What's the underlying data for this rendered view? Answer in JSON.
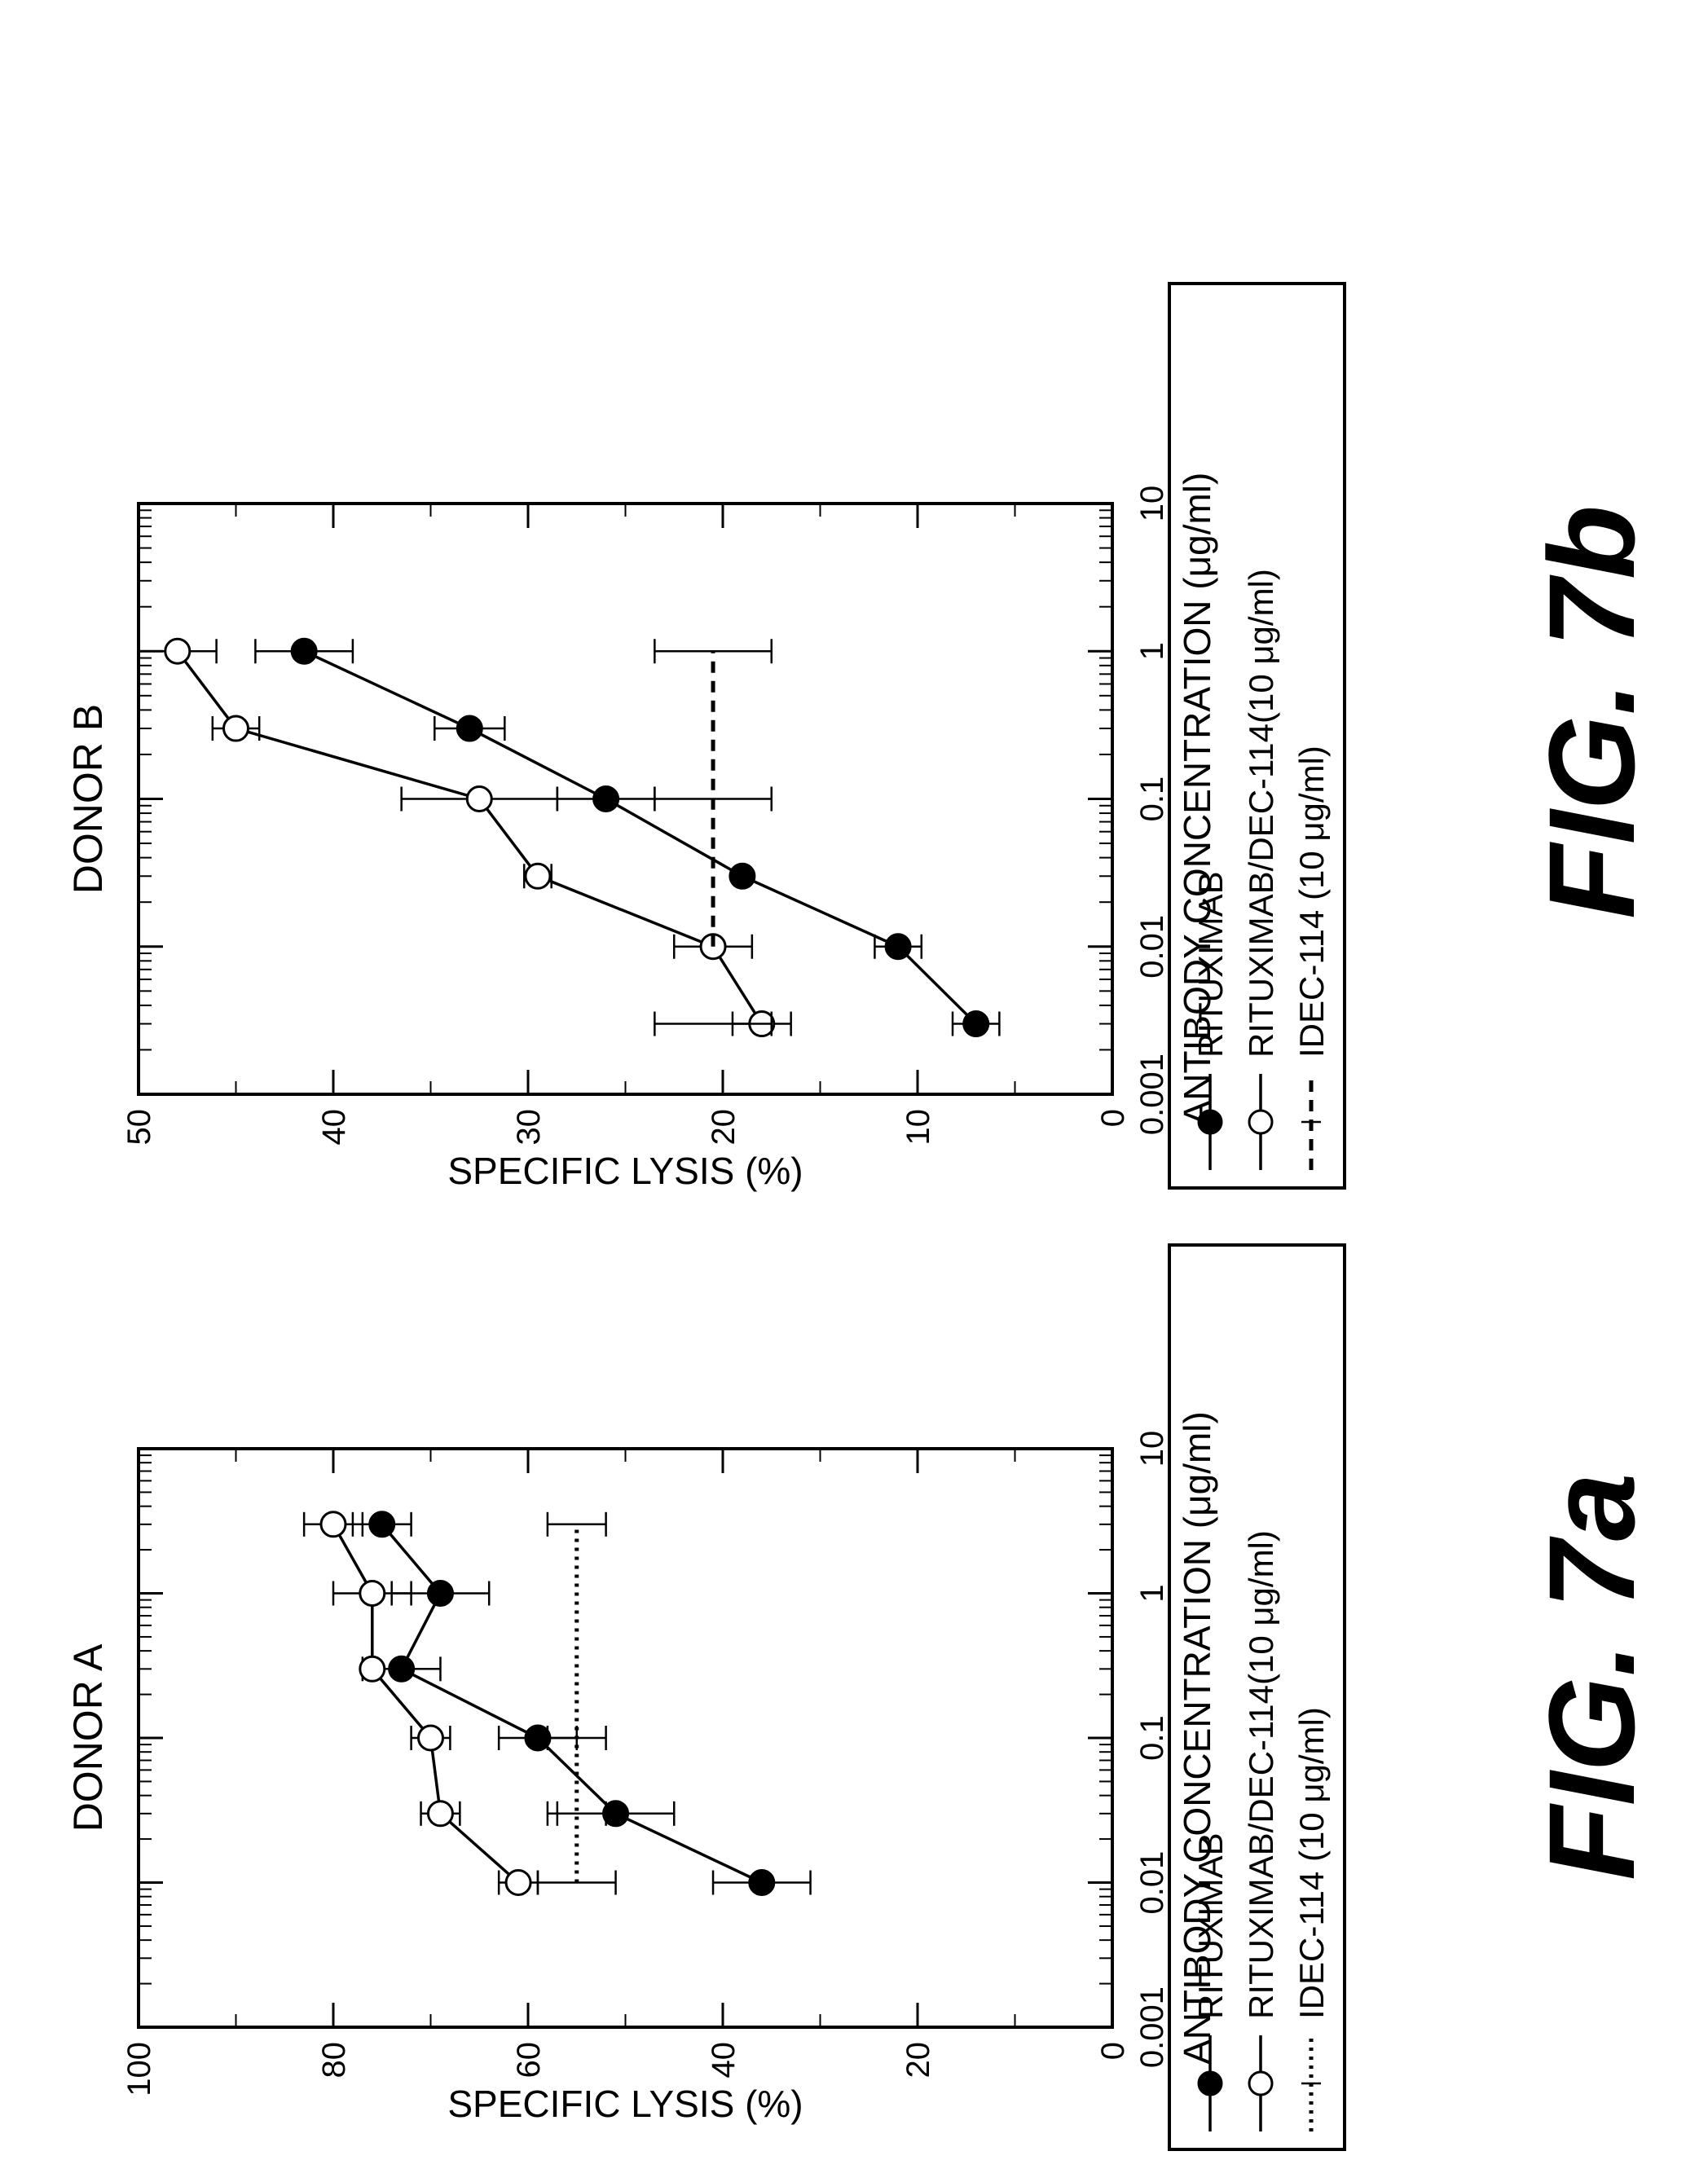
{
  "chart_data": [
    {
      "type": "line",
      "title": "DONOR A",
      "figure_label": "FIG. 7a",
      "xlabel": "ANTIBODY CONCENTRATION (μg/ml)",
      "ylabel": "SPECIFIC LYSIS (%)",
      "xscale": "log",
      "xlim": [
        0.001,
        10
      ],
      "ylim": [
        0,
        100
      ],
      "xticks": [
        "0.001",
        "0.01",
        "0.1",
        "1",
        "10"
      ],
      "yticks": [
        "0",
        "20",
        "40",
        "60",
        "80",
        "100"
      ],
      "legend_position": "below",
      "series": [
        {
          "name": "RITUXIMAB",
          "marker": "filled-circle",
          "style": "solid",
          "x": [
            0.01,
            0.03,
            0.1,
            0.3,
            1,
            3
          ],
          "y": [
            36,
            51,
            59,
            73,
            69,
            75
          ],
          "err": [
            5,
            6,
            4,
            4,
            5,
            3
          ]
        },
        {
          "name": "RITUXIMAB/DEC-114(10 μg/ml)",
          "marker": "open-circle",
          "style": "solid",
          "x": [
            0.01,
            0.03,
            0.1,
            0.3,
            1,
            3
          ],
          "y": [
            61,
            69,
            70,
            76,
            76,
            80
          ],
          "err": [
            2,
            2,
            2,
            0,
            4,
            3
          ]
        },
        {
          "name": "IDEC-114 (10 μg/ml)",
          "marker": "none",
          "style": "dotted",
          "x": [
            0.01,
            3
          ],
          "y": [
            55,
            55
          ],
          "err": [
            4,
            3
          ],
          "error_bar_x": [
            0.01,
            0.03,
            0.1,
            3
          ]
        }
      ]
    },
    {
      "type": "line",
      "title": "DONOR B",
      "figure_label": "FIG. 7b",
      "xlabel": "ANTIBODY CONCENTRATION (μg/ml)",
      "ylabel": "SPECIFIC LYSIS (%)",
      "xscale": "log",
      "xlim": [
        0.001,
        10
      ],
      "ylim": [
        0,
        50
      ],
      "xticks": [
        "0.001",
        "0.01",
        "0.1",
        "1",
        "10"
      ],
      "yticks": [
        "0",
        "10",
        "20",
        "30",
        "40",
        "50"
      ],
      "legend_position": "below",
      "series": [
        {
          "name": "RITUXIMAB",
          "marker": "filled-circle",
          "style": "solid",
          "x": [
            0.003,
            0.01,
            0.03,
            0.1,
            0.3,
            1
          ],
          "y": [
            7,
            11,
            19,
            26,
            33,
            41.5
          ],
          "err": [
            1.2,
            1.2,
            0,
            2.5,
            1.8,
            2.5
          ]
        },
        {
          "name": "RITUXIMAB/DEC-114(10 μg/ml)",
          "marker": "open-circle",
          "style": "solid",
          "x": [
            0.003,
            0.01,
            0.03,
            0.1,
            0.3,
            1
          ],
          "y": [
            18,
            20.5,
            29.5,
            32.5,
            45,
            48
          ],
          "err": [
            1.5,
            2,
            0.7,
            4,
            1.2,
            2
          ]
        },
        {
          "name": "IDEC-114 (10 μg/ml)",
          "marker": "none",
          "style": "dashed",
          "x": [
            0.01,
            1
          ],
          "y": [
            20.5,
            20.5
          ],
          "err": [
            3,
            3
          ],
          "error_bar_x": [
            0.003,
            0.1,
            1
          ]
        }
      ]
    }
  ]
}
